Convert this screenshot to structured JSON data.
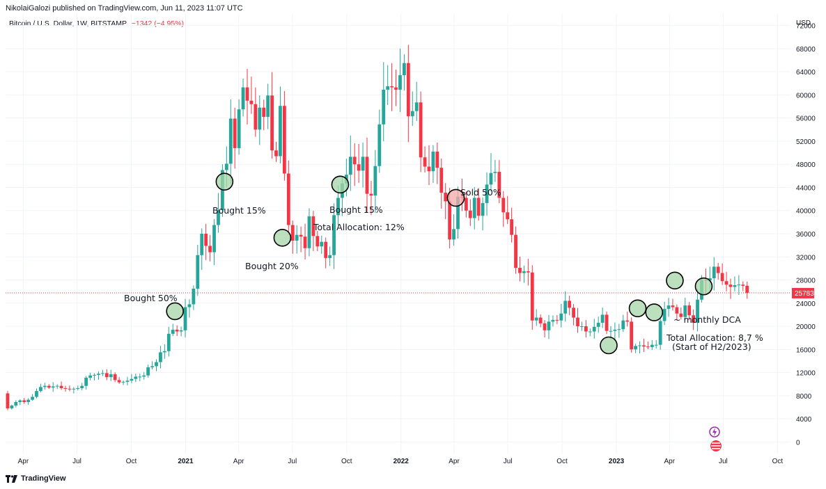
{
  "header": {
    "publisher_line": "NikolaiGalozi published on TradingView.com, Jun 11, 2023 11:07 UTC"
  },
  "symbol": {
    "name": "Bitcoin / U.S. Dollar, 1W, BITSTAMP",
    "change": "−1342 (−4.95%)"
  },
  "footer": {
    "brand": "TradingView"
  },
  "colors": {
    "up": "#26a69a",
    "down": "#f23645",
    "circle_buy": "#a5d6a7",
    "circle_sell": "#f7a9a9",
    "grid": "#f0f3fa",
    "price_line": "#f23645"
  },
  "chart_data": {
    "type": "candlestick",
    "currency_label": "USD",
    "last_price": "25783",
    "last_price_value": 25783,
    "ylim": [
      -2000,
      74000
    ],
    "y_ticks": [
      0,
      4000,
      8000,
      12000,
      16000,
      20000,
      24000,
      28000,
      32000,
      36000,
      40000,
      44000,
      48000,
      52000,
      56000,
      60000,
      64000,
      68000,
      72000
    ],
    "y_tick_labels": [
      "0",
      "4000",
      "8000",
      "12000",
      "16000",
      "20000",
      "24000",
      "28000",
      "32000",
      "36000",
      "40000",
      "44000",
      "48000",
      "52000",
      "56000",
      "60000",
      "64000",
      "68000",
      "72000"
    ],
    "x_ticks": [
      "2020-04-01",
      "2020-07-01",
      "2020-10-01",
      "2021-01-01",
      "2021-04-01",
      "2021-07-01",
      "2021-10-01",
      "2022-01-01",
      "2022-04-01",
      "2022-07-01",
      "2022-10-01",
      "2023-01-01",
      "2023-04-01",
      "2023-07-01",
      "2023-10-01"
    ],
    "x_tick_labels": [
      "Apr",
      "Jul",
      "Oct",
      "2021",
      "Apr",
      "Jul",
      "Oct",
      "2022",
      "Apr",
      "Jul",
      "Oct",
      "2023",
      "Apr",
      "Jul",
      "Oct"
    ],
    "x_range": [
      "2020-03-02",
      "2023-10-23"
    ],
    "weekly_close": [
      5800,
      6300,
      6900,
      7200,
      6900,
      7300,
      7800,
      8800,
      9500,
      9700,
      9400,
      9600,
      9700,
      9300,
      9200,
      9100,
      9200,
      9300,
      9700,
      11100,
      11500,
      11600,
      11800,
      11900,
      11200,
      11700,
      10700,
      10300,
      10400,
      10600,
      10900,
      11300,
      11300,
      11500,
      12900,
      13100,
      13800,
      15500,
      15700,
      18700,
      19400,
      19100,
      19300,
      23300,
      23800,
      26500,
      32300,
      36000,
      33900,
      32800,
      37500,
      40100,
      47000,
      48100,
      55900,
      50800,
      57500,
      61300,
      59000,
      58400,
      54000,
      57800,
      56200,
      59900,
      50400,
      49400,
      58100,
      46400,
      37500,
      34800,
      35800,
      35500,
      33500,
      39000,
      35600,
      33800,
      34600,
      31800,
      32300,
      39200,
      42200,
      44700,
      46200,
      49300,
      48000,
      46900,
      49300,
      42900,
      42600,
      47700,
      54900,
      60900,
      61500,
      61300,
      60900,
      63400,
      65500,
      56300,
      57200,
      58700,
      49200,
      47600,
      46800,
      50200,
      47400,
      43100,
      41600,
      35000,
      36800,
      42400,
      42200,
      40000,
      38700,
      42200,
      39100,
      41300,
      44500,
      46500,
      46700,
      42200,
      39700,
      38500,
      35800,
      30100,
      29200,
      29500,
      29300,
      21000,
      21500,
      20500,
      19300,
      20800,
      21100,
      21000,
      22200,
      24400,
      23200,
      21500,
      20000,
      20000,
      19100,
      19100,
      19900,
      20600,
      22000,
      19200,
      19200,
      19400,
      19500,
      21000,
      20800,
      16000,
      16600,
      16700,
      16500,
      16400,
      16800,
      16800,
      20900,
      23000,
      23600,
      23300,
      22200,
      21600,
      23600,
      21900,
      20600,
      24600,
      28000,
      27900,
      28300,
      30300,
      29200,
      27800,
      27200,
      26800,
      27100,
      27200,
      27000,
      25783
    ],
    "annotations": [
      {
        "label": "Bought 50%",
        "date": "2020-12-14",
        "price": 22600,
        "kind": "buy"
      },
      {
        "label": "Bought 15%",
        "date": "2021-03-08",
        "price": 45000,
        "kind": "buy"
      },
      {
        "label": "Bought 20%",
        "date": "2021-06-14",
        "price": 35300,
        "kind": "buy"
      },
      {
        "label": "Bought 15%",
        "date": "2021-09-20",
        "price": 44500,
        "kind": "buy"
      },
      {
        "label": "Total Allocation: 12%",
        "kind": "text"
      },
      {
        "label": "Sold 50%",
        "date": "2022-04-04",
        "price": 42200,
        "kind": "sell"
      },
      {
        "label": "",
        "date": "2022-12-19",
        "price": 16700,
        "kind": "buy"
      },
      {
        "label": "",
        "date": "2023-02-06",
        "price": 23100,
        "kind": "buy"
      },
      {
        "label": "",
        "date": "2023-03-06",
        "price": 22400,
        "kind": "buy"
      },
      {
        "label": "",
        "date": "2023-04-10",
        "price": 27900,
        "kind": "buy"
      },
      {
        "label": "",
        "date": "2023-05-29",
        "price": 26900,
        "kind": "buy"
      },
      {
        "label": "~ monthly DCA",
        "kind": "text"
      },
      {
        "label": "Total Allocation: 8,7 %",
        "kind": "text"
      },
      {
        "label": "(Start of H2/2023)",
        "kind": "text"
      }
    ]
  }
}
